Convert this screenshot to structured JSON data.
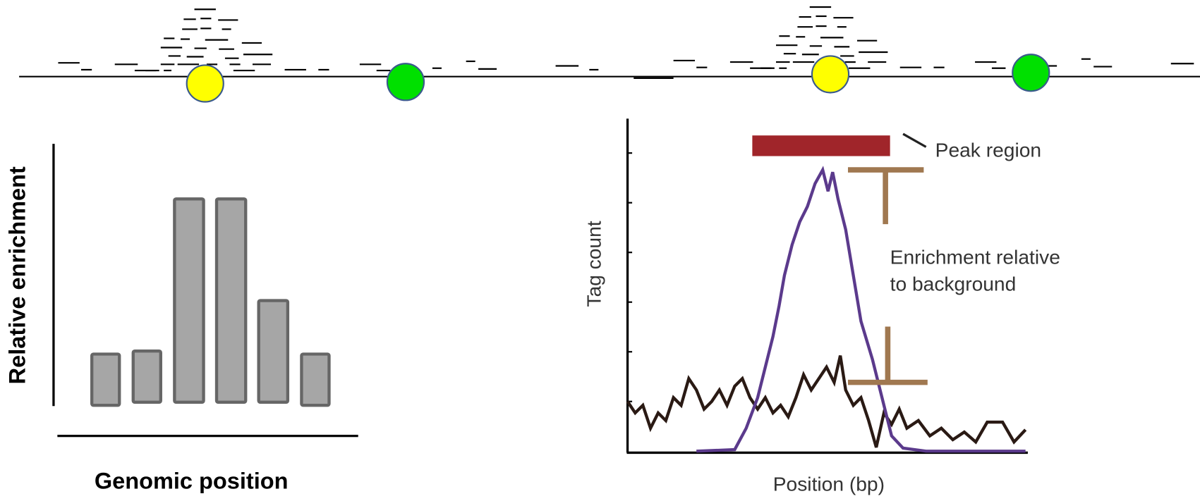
{
  "left_panel": {
    "y_label": "Relative enrichment",
    "x_label": "Genomic position"
  },
  "right_panel": {
    "y_label": "Tag count",
    "x_label": "Position (bp)",
    "peak_label": "Peak region",
    "enrichment_label": [
      "Enrichment relative",
      "to background"
    ]
  }
}
